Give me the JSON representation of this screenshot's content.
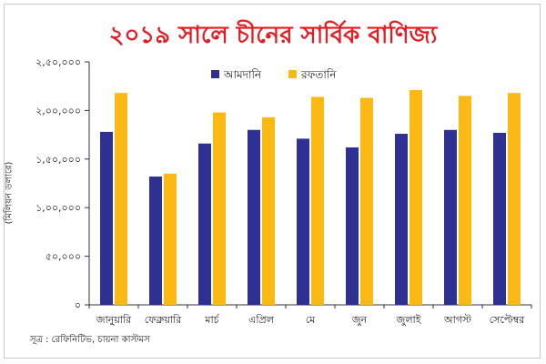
{
  "chart_data": {
    "type": "bar",
    "title": "২০১৯ সালে চীনের সার্বিক বাণিজ্য",
    "ylabel": "(মিলিয়ন ডলারে)",
    "xlabel": "",
    "categories": [
      "জানুয়ারি",
      "ফেব্রুয়ারি",
      "মার্চ",
      "এপ্রিল",
      "মে",
      "জুন",
      "জুলাই",
      "আগস্ট",
      "সেপ্টেম্বর"
    ],
    "series": [
      {
        "name": "আমদানি",
        "color": "#2e3192",
        "values": [
          178000,
          132000,
          166000,
          180000,
          171000,
          162000,
          176000,
          180000,
          177000
        ]
      },
      {
        "name": "রফতানি",
        "color": "#fdb913",
        "values": [
          218000,
          135000,
          198000,
          193000,
          214000,
          213000,
          221000,
          215000,
          218000
        ]
      }
    ],
    "ylim": [
      0,
      250000
    ],
    "yticks": [
      0,
      50000,
      100000,
      150000,
      200000,
      250000
    ],
    "ytick_labels": [
      "০",
      "৫০,০০০",
      "১,০০,০০০",
      "১,৫০,০০০",
      "২,০০,০০০",
      "২,৫০,০০০"
    ],
    "legend_position": "top-center",
    "grid": false
  },
  "source": "সূত্র : রেফিনিটিভ, চায়না কাস্টমস"
}
